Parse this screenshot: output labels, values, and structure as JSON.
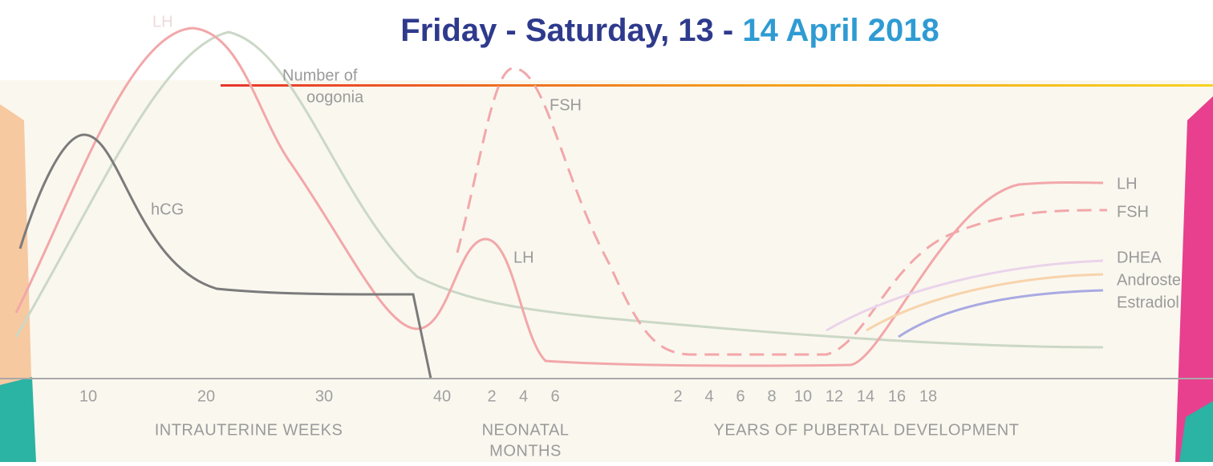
{
  "header": {
    "title_date": "Friday - Saturday, 13 -",
    "title_month": "14 April 2018"
  },
  "curve_labels": {
    "lh_fetal": "LH",
    "oogonia_1": "Number of",
    "oogonia_2": "oogonia",
    "fsh_neonatal": "FSH",
    "hcg": "hCG",
    "lh_neonatal": "LH",
    "lh_pubertal": "LH",
    "fsh_pubertal": "FSH",
    "dhea": "DHEA",
    "androstenedione": "Androste",
    "estradiol": "Estradiol"
  },
  "axis": {
    "intrauterine": {
      "ticks": [
        "10",
        "20",
        "30",
        "40"
      ],
      "label": "INTRAUTERINE WEEKS"
    },
    "neonatal": {
      "ticks": [
        "2",
        "4",
        "6"
      ],
      "label_lines": [
        "NEONATAL",
        "MONTHS"
      ]
    },
    "pubertal": {
      "ticks": [
        "2",
        "4",
        "6",
        "8",
        "10",
        "12",
        "14",
        "16",
        "18"
      ],
      "label": "YEARS OF PUBERTAL DEVELOPMENT"
    }
  }
}
